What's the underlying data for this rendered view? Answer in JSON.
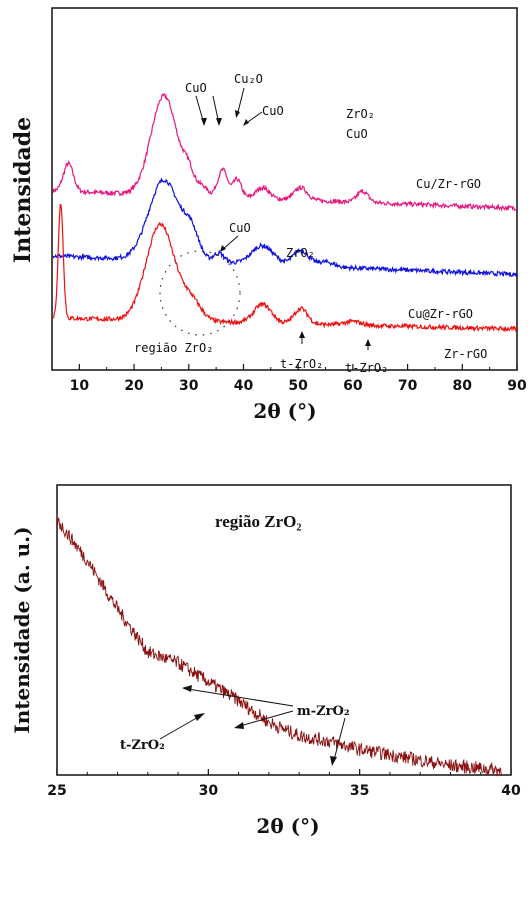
{
  "chart_data": [
    {
      "type": "line",
      "xlabel": "2θ (°)",
      "ylabel": "Intensidade",
      "xlim": [
        5,
        90
      ],
      "xticks": [
        "10",
        "20",
        "30",
        "40",
        "50",
        "60",
        "70",
        "80",
        "90"
      ],
      "series": [
        {
          "name": "Cu/Zr-rGO",
          "color": "#e8177f",
          "offset": 2.1,
          "baseline": 0.5,
          "tail": -0.28,
          "peaks": [
            [
              8,
              0.45,
              0.9
            ],
            [
              25.5,
              1.6,
              2.4
            ],
            [
              30,
              0.3,
              1
            ],
            [
              32.5,
              0.15,
              1
            ],
            [
              35.5,
              0.2,
              0.7
            ],
            [
              36.5,
              0.35,
              0.7
            ],
            [
              38.8,
              0.3,
              0.8
            ],
            [
              43.5,
              0.18,
              1.2
            ],
            [
              50.5,
              0.2,
              1.2
            ],
            [
              61.8,
              0.18,
              1
            ]
          ]
        },
        {
          "name": "Cu@Zr-rGO",
          "color": "#1010e0",
          "offset": 1.1,
          "baseline": 0.45,
          "tail": -0.3,
          "peaks": [
            [
              25.5,
              1.3,
              2.8
            ],
            [
              30.5,
              0.4,
              1.4
            ],
            [
              35.5,
              0.15,
              1
            ],
            [
              43.5,
              0.3,
              2.0
            ],
            [
              50.5,
              0.25,
              1.4
            ],
            [
              55,
              0.08,
              1.5
            ]
          ]
        },
        {
          "name": "Zr-rGO",
          "color": "#ee1010",
          "offset": 0.0,
          "baseline": 0.55,
          "tail": -0.18,
          "peaks": [
            [
              6.6,
              1.85,
              0.45
            ],
            [
              24.8,
              1.55,
              2.6
            ],
            [
              30.5,
              0.3,
              1.8
            ],
            [
              43.5,
              0.3,
              1.6
            ],
            [
              50.5,
              0.25,
              1.2
            ],
            [
              60,
              0.06,
              1.5
            ]
          ]
        }
      ],
      "annotations": [
        {
          "text": "CuO"
        },
        {
          "text": "Cu₂O"
        },
        {
          "text": "CuO"
        },
        {
          "text": "ZrO₂"
        },
        {
          "text": "CuO"
        },
        {
          "text": "CuO"
        },
        {
          "text": "ZrO₂"
        },
        {
          "text": "região ZrO₂"
        },
        {
          "text": "t-ZrO₂"
        },
        {
          "text": "t-ZrO₂"
        }
      ]
    },
    {
      "type": "line",
      "title": "região ZrO₂",
      "xlabel": "2θ (°)",
      "ylabel": "Intensidade (a. u.)",
      "xlim": [
        25,
        40
      ],
      "xticks": [
        "25",
        "30",
        "35",
        "40"
      ],
      "series": [
        {
          "name": "",
          "color": "#8b1010",
          "points": [
            [
              25,
              0.93
            ],
            [
              26,
              0.78
            ],
            [
              27,
              0.6
            ],
            [
              28,
              0.44
            ],
            [
              29,
              0.4
            ],
            [
              30,
              0.33
            ],
            [
              31,
              0.26
            ],
            [
              32,
              0.18
            ],
            [
              33,
              0.13
            ],
            [
              34,
              0.11
            ],
            [
              35,
              0.08
            ],
            [
              36,
              0.06
            ],
            [
              37,
              0.04
            ],
            [
              38,
              0.02
            ],
            [
              39,
              0.01
            ],
            [
              40,
              0.0
            ]
          ]
        }
      ],
      "annotations": [
        {
          "text": "m-ZrO₂"
        },
        {
          "text": "t-ZrO₂"
        }
      ]
    }
  ]
}
